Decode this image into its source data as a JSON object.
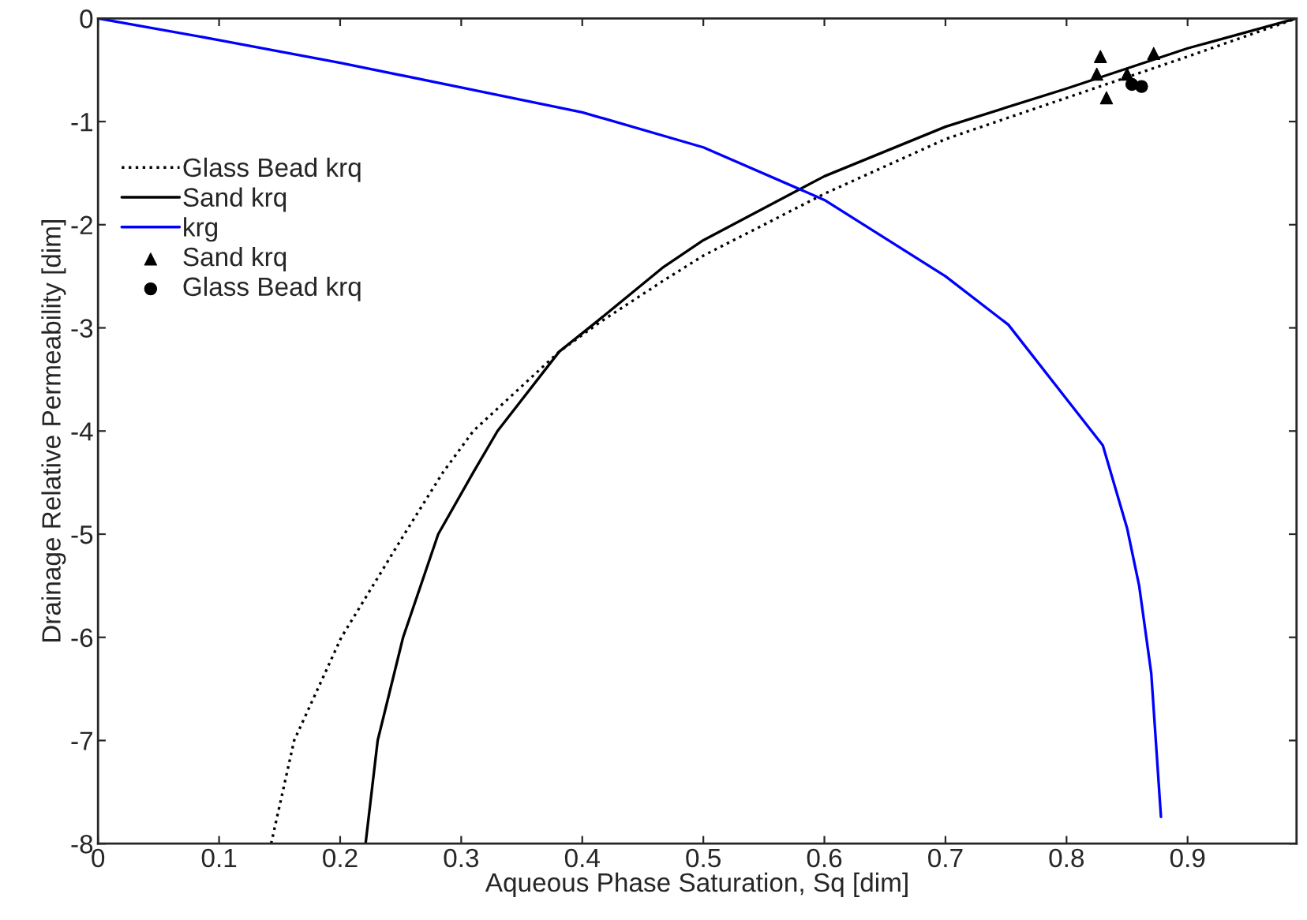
{
  "chart_data": {
    "type": "line",
    "xlabel": "Aqueous Phase Saturation, Sq [dim]",
    "ylabel": "Drainage Relative Permeability [dim]",
    "xlim": [
      0,
      0.99
    ],
    "ylim": [
      -8,
      0
    ],
    "xticks": [
      0,
      0.1,
      0.2,
      0.3,
      0.4,
      0.5,
      0.6,
      0.7,
      0.8,
      0.9
    ],
    "yticks": [
      -8,
      -7,
      -6,
      -5,
      -4,
      -3,
      -2,
      -1,
      0
    ],
    "grid": false,
    "legend": "top left",
    "series": [
      {
        "name": "Glass Bead krq",
        "line_style": "dotted",
        "marker": "none",
        "color": "#000000",
        "x": [
          0.143,
          0.162,
          0.201,
          0.253,
          0.285,
          0.31,
          0.381,
          0.414,
          0.466,
          0.5,
          0.6,
          0.7,
          0.8,
          0.9,
          0.99
        ],
        "values": [
          -8,
          -7,
          -6,
          -5,
          -4.4,
          -4.0,
          -3.23,
          -2.95,
          -2.55,
          -2.3,
          -1.7,
          -1.17,
          -0.77,
          -0.37,
          0
        ]
      },
      {
        "name": "Sand krq",
        "line_style": "solid",
        "marker": "none",
        "color": "#000000",
        "x": [
          0.221,
          0.231,
          0.252,
          0.281,
          0.31,
          0.33,
          0.381,
          0.414,
          0.466,
          0.5,
          0.6,
          0.7,
          0.8,
          0.9,
          0.99
        ],
        "values": [
          -8,
          -7,
          -6,
          -5,
          -4.4,
          -4.0,
          -3.23,
          -2.92,
          -2.42,
          -2.15,
          -1.53,
          -1.05,
          -0.68,
          -0.29,
          0
        ]
      },
      {
        "name": "krg",
        "line_style": "solid",
        "marker": "none",
        "color": "#0000ff",
        "x": [
          0,
          0.1,
          0.2,
          0.3,
          0.4,
          0.5,
          0.6,
          0.7,
          0.752,
          0.8,
          0.83,
          0.85,
          0.86,
          0.87,
          0.878
        ],
        "values": [
          0,
          -0.21,
          -0.43,
          -0.67,
          -0.91,
          -1.25,
          -1.76,
          -2.5,
          -2.97,
          -3.69,
          -4.14,
          -4.94,
          -5.5,
          -6.35,
          -7.74
        ]
      },
      {
        "name": "Sand krq",
        "type": "scatter",
        "marker": "triangle",
        "color": "#000000",
        "x": [
          0.828,
          0.825,
          0.833,
          0.85,
          0.872
        ],
        "values": [
          -0.37,
          -0.54,
          -0.77,
          -0.54,
          -0.34
        ]
      },
      {
        "name": "Glass Bead krq",
        "type": "scatter",
        "marker": "circle",
        "color": "#000000",
        "x": [
          0.854,
          0.862
        ],
        "values": [
          -0.64,
          -0.66
        ]
      }
    ]
  }
}
